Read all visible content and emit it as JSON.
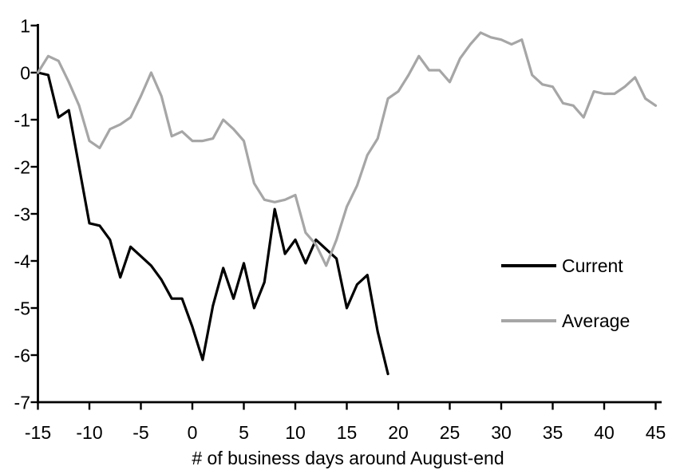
{
  "chart_data": {
    "type": "line",
    "title": "",
    "xlabel": "# of business days around August-end",
    "ylabel": "",
    "xlim": [
      -15,
      45
    ],
    "ylim": [
      -7,
      1
    ],
    "x_ticks": [
      -15,
      -10,
      -5,
      0,
      5,
      10,
      15,
      20,
      25,
      30,
      35,
      40,
      45
    ],
    "y_ticks": [
      1,
      0,
      -1,
      -2,
      -3,
      -4,
      -5,
      -6,
      -7
    ],
    "grid": false,
    "axis_color": "#000000",
    "legend": {
      "position": "center-right",
      "entries": [
        "Current",
        "Average"
      ]
    },
    "series": [
      {
        "name": "Current",
        "color": "#000000",
        "x": [
          -15,
          -14,
          -13,
          -12,
          -11,
          -10,
          -9,
          -8,
          -7,
          -6,
          -5,
          -4,
          -3,
          -2,
          -1,
          0,
          1,
          2,
          3,
          4,
          5,
          6,
          7,
          8,
          9,
          10,
          11,
          12,
          13,
          14,
          15,
          16,
          17,
          18,
          19
        ],
        "values": [
          0.0,
          -0.05,
          -0.95,
          -0.8,
          -2.0,
          -3.2,
          -3.25,
          -3.55,
          -4.35,
          -3.7,
          -3.9,
          -4.1,
          -4.4,
          -4.8,
          -4.8,
          -5.4,
          -6.1,
          -4.95,
          -4.15,
          -4.8,
          -4.05,
          -5.0,
          -4.45,
          -2.9,
          -3.85,
          -3.55,
          -4.05,
          -3.55,
          -3.75,
          -3.95,
          -5.0,
          -4.5,
          -4.3,
          -5.5,
          -6.4
        ]
      },
      {
        "name": "Average",
        "color": "#a6a6a6",
        "x": [
          -15,
          -14,
          -13,
          -12,
          -11,
          -10,
          -9,
          -8,
          -7,
          -6,
          -5,
          -4,
          -3,
          -2,
          -1,
          0,
          1,
          2,
          3,
          4,
          5,
          6,
          7,
          8,
          9,
          10,
          11,
          12,
          13,
          14,
          15,
          16,
          17,
          18,
          19,
          20,
          21,
          22,
          23,
          24,
          25,
          26,
          27,
          28,
          29,
          30,
          31,
          32,
          33,
          34,
          35,
          36,
          37,
          38,
          39,
          40,
          41,
          42,
          43,
          44,
          45
        ],
        "values": [
          0.0,
          0.35,
          0.25,
          -0.2,
          -0.7,
          -1.45,
          -1.6,
          -1.2,
          -1.1,
          -0.95,
          -0.5,
          0.0,
          -0.5,
          -1.35,
          -1.25,
          -1.45,
          -1.45,
          -1.4,
          -1.0,
          -1.2,
          -1.45,
          -2.35,
          -2.7,
          -2.75,
          -2.7,
          -2.6,
          -3.4,
          -3.65,
          -4.1,
          -3.55,
          -2.85,
          -2.4,
          -1.75,
          -1.4,
          -0.55,
          -0.4,
          -0.05,
          0.35,
          0.05,
          0.05,
          -0.2,
          0.3,
          0.6,
          0.85,
          0.75,
          0.7,
          0.6,
          0.7,
          -0.05,
          -0.25,
          -0.3,
          -0.65,
          -0.7,
          -0.95,
          -0.4,
          -0.45,
          -0.45,
          -0.3,
          -0.1,
          -0.55,
          -0.7
        ]
      }
    ]
  }
}
